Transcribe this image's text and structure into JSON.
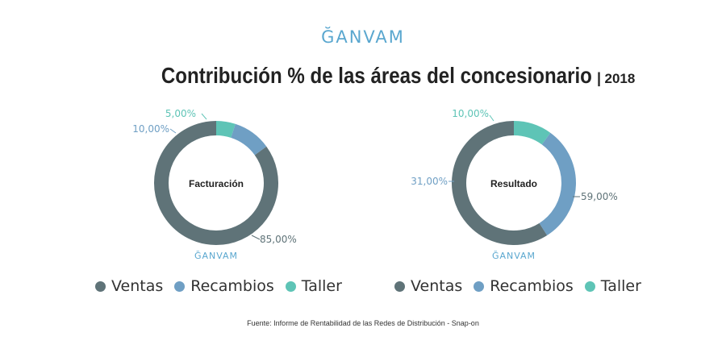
{
  "logo_text": "ĞANVAM",
  "title": "Contribución % de las áreas del concesionario",
  "year": "2018",
  "colors": {
    "Ventas": "#5f7378",
    "Recambios": "#6f9fc4",
    "Taller": "#5ec4b6"
  },
  "chart_data": [
    {
      "type": "pie",
      "center_label": "Facturación",
      "categories": [
        "Ventas",
        "Recambios",
        "Taller"
      ],
      "values": [
        85.0,
        10.0,
        5.0
      ],
      "value_labels": [
        "85,00%",
        "10,00%",
        "5,00%"
      ],
      "legend": [
        "Ventas",
        "Recambios",
        "Taller"
      ],
      "legend_position": "bottom",
      "watermark": "ĞANVAM"
    },
    {
      "type": "pie",
      "center_label": "Resultado",
      "categories": [
        "Ventas",
        "Recambios",
        "Taller"
      ],
      "values": [
        59.0,
        31.0,
        10.0
      ],
      "value_labels": [
        "59,00%",
        "31,00%",
        "10,00%"
      ],
      "legend": [
        "Ventas",
        "Recambios",
        "Taller"
      ],
      "legend_position": "bottom",
      "watermark": "ĞANVAM"
    }
  ],
  "source": "Fuente: Informe de Rentabilidad de las Redes de Distribución - Snap-on"
}
